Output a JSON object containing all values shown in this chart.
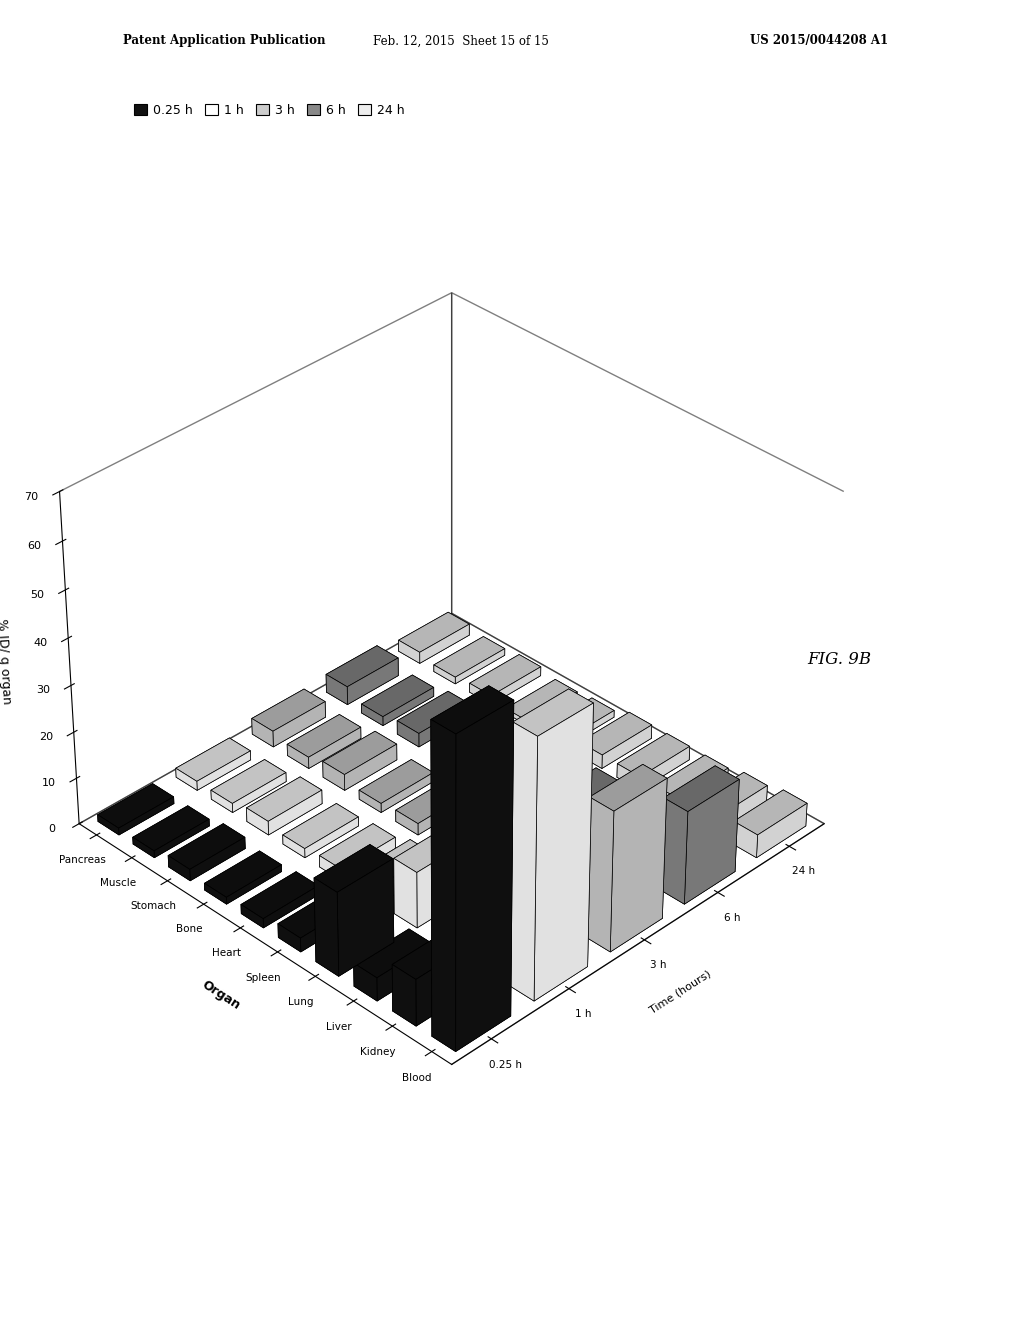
{
  "organs": [
    "Blood",
    "Kidney",
    "Liver",
    "Lung",
    "Spleen",
    "Heart",
    "Bone",
    "Stomach",
    "Muscle",
    "Pancreas"
  ],
  "timepoints": [
    "0.25 h",
    "1 h",
    "3 h",
    "6 h",
    "24 h"
  ],
  "ylabel": "% ID/ g organ",
  "organ_label": "Organ",
  "time_label": "Time (hours)",
  "ylim_max": 70,
  "yticks": [
    0,
    10,
    20,
    30,
    40,
    50,
    60,
    70
  ],
  "data": [
    [
      65.0,
      10.0,
      5.0,
      18.0,
      3.0,
      2.0,
      1.5,
      2.5,
      1.5,
      1.5
    ],
    [
      55.0,
      12.0,
      8.0,
      12.0,
      4.0,
      2.5,
      2.0,
      3.0,
      2.0,
      2.0
    ],
    [
      30.0,
      8.0,
      6.0,
      6.0,
      5.0,
      2.5,
      2.0,
      3.5,
      2.5,
      3.5
    ],
    [
      20.0,
      6.0,
      5.0,
      5.0,
      15.0,
      2.0,
      1.5,
      3.0,
      2.0,
      4.0
    ],
    [
      5.0,
      4.0,
      3.0,
      3.0,
      3.0,
      1.5,
      1.0,
      2.0,
      1.5,
      2.5
    ]
  ],
  "bar_facecolors": [
    "#111111",
    "#ffffff",
    "#cccccc",
    "#888888",
    "#eeeeee"
  ],
  "bar_edgecolors": [
    "black",
    "black",
    "black",
    "black",
    "black"
  ],
  "fig_width": 10.24,
  "fig_height": 13.2,
  "header_left": "Patent Application Publication",
  "header_mid": "Feb. 12, 2015  Sheet 15 of 15",
  "header_right": "US 2015/0044208 A1",
  "fig_label": "FIG. 9B",
  "elev": 35,
  "azim": 225
}
